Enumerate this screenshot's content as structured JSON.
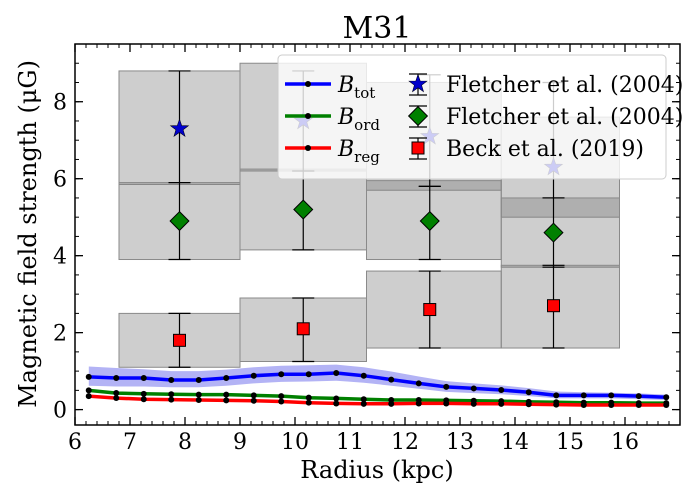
{
  "chart_data": {
    "type": "line",
    "title": "M31",
    "xlabel": "Radius (kpc)",
    "ylabel": "Magnetic field strength (μG)",
    "xlim": [
      6,
      17.0
    ],
    "ylim": [
      -0.4,
      9.5
    ],
    "xticks": [
      6,
      7,
      8,
      9,
      10,
      11,
      12,
      13,
      14,
      15,
      16
    ],
    "yticks": [
      0,
      2,
      4,
      6,
      8
    ],
    "grid": false,
    "legend_position": "top-right",
    "series": [
      {
        "name": "B_tot",
        "label_main": "B",
        "label_sub": "tot",
        "color": "#0000ff",
        "band_color": "#b3b3f5",
        "x": [
          6.25,
          6.75,
          7.25,
          7.75,
          8.25,
          8.75,
          9.25,
          9.75,
          10.25,
          10.75,
          11.25,
          11.75,
          12.25,
          12.75,
          13.25,
          13.75,
          14.25,
          14.75,
          15.25,
          15.75,
          16.25,
          16.75
        ],
        "y": [
          0.85,
          0.82,
          0.82,
          0.77,
          0.77,
          0.82,
          0.88,
          0.92,
          0.92,
          0.95,
          0.88,
          0.78,
          0.68,
          0.59,
          0.55,
          0.51,
          0.45,
          0.37,
          0.37,
          0.37,
          0.35,
          0.32
        ],
        "band_upper": [
          1.12,
          1.08,
          1.05,
          1.0,
          1.0,
          1.04,
          1.1,
          1.14,
          1.15,
          1.17,
          1.1,
          0.99,
          0.86,
          0.74,
          0.68,
          0.63,
          0.56,
          0.47,
          0.45,
          0.44,
          0.42,
          0.39
        ],
        "band_lower": [
          0.62,
          0.6,
          0.6,
          0.58,
          0.58,
          0.62,
          0.68,
          0.72,
          0.73,
          0.75,
          0.7,
          0.62,
          0.54,
          0.46,
          0.43,
          0.4,
          0.35,
          0.29,
          0.29,
          0.29,
          0.27,
          0.25
        ]
      },
      {
        "name": "B_ord",
        "label_main": "B",
        "label_sub": "ord",
        "color": "#008000",
        "x": [
          6.25,
          6.75,
          7.25,
          7.75,
          8.25,
          8.75,
          9.25,
          9.75,
          10.25,
          10.75,
          11.25,
          11.75,
          12.25,
          12.75,
          13.25,
          13.75,
          14.25,
          14.75,
          15.25,
          15.75,
          16.25,
          16.75
        ],
        "y": [
          0.5,
          0.43,
          0.41,
          0.4,
          0.39,
          0.39,
          0.37,
          0.35,
          0.31,
          0.29,
          0.27,
          0.25,
          0.25,
          0.24,
          0.23,
          0.22,
          0.2,
          0.19,
          0.18,
          0.18,
          0.17,
          0.17
        ]
      },
      {
        "name": "B_reg",
        "label_main": "B",
        "label_sub": "reg",
        "color": "#ff0000",
        "x": [
          6.25,
          6.75,
          7.25,
          7.75,
          8.25,
          8.75,
          9.25,
          9.75,
          10.25,
          10.75,
          11.25,
          11.75,
          12.25,
          12.75,
          13.25,
          13.75,
          14.25,
          14.75,
          15.25,
          15.75,
          16.25,
          16.75
        ],
        "y": [
          0.35,
          0.3,
          0.27,
          0.26,
          0.25,
          0.24,
          0.23,
          0.21,
          0.18,
          0.16,
          0.15,
          0.15,
          0.16,
          0.16,
          0.15,
          0.15,
          0.14,
          0.13,
          0.12,
          0.12,
          0.12,
          0.12
        ]
      }
    ],
    "points": [
      {
        "name": "Fletcher et al. (2004)",
        "marker": "star",
        "color": "#0000cc",
        "x": [
          7.9,
          10.15,
          12.45,
          14.7
        ],
        "y": [
          7.3,
          7.5,
          7.1,
          6.3
        ],
        "yerr_upper": [
          8.8,
          8.8,
          8.7,
          8.5
        ],
        "yerr_lower": [
          5.9,
          6.2,
          5.8,
          5.5
        ],
        "box_x": [
          [
            6.8,
            9.0
          ],
          [
            9.0,
            11.3
          ],
          [
            11.3,
            13.75
          ],
          [
            13.75,
            15.9
          ]
        ],
        "box_y": [
          [
            5.85,
            8.8
          ],
          [
            6.2,
            9.0
          ],
          [
            5.7,
            8.5
          ],
          [
            5.0,
            7.6
          ]
        ]
      },
      {
        "name": "Fletcher et al. (2004)",
        "marker": "diamond",
        "color": "#008000",
        "x": [
          7.9,
          10.15,
          12.45,
          14.7
        ],
        "y": [
          4.9,
          5.2,
          4.9,
          4.6
        ],
        "yerr_upper": [
          5.9,
          6.2,
          5.8,
          5.5
        ],
        "yerr_lower": [
          3.9,
          4.15,
          3.9,
          3.7
        ],
        "box_x": [
          [
            6.8,
            9.0
          ],
          [
            9.0,
            11.3
          ],
          [
            11.3,
            13.75
          ],
          [
            13.75,
            15.9
          ]
        ],
        "box_y": [
          [
            3.9,
            5.9
          ],
          [
            4.15,
            6.25
          ],
          [
            3.9,
            5.95
          ],
          [
            3.7,
            5.5
          ]
        ]
      },
      {
        "name": "Beck et al. (2019)",
        "marker": "square",
        "color": "#ff0000",
        "x": [
          7.9,
          10.15,
          12.45,
          14.7
        ],
        "y": [
          1.8,
          2.1,
          2.6,
          2.7
        ],
        "yerr_upper": [
          2.5,
          2.9,
          3.6,
          3.75
        ],
        "yerr_lower": [
          1.1,
          1.25,
          1.6,
          1.6
        ],
        "box_x": [
          [
            6.8,
            9.0
          ],
          [
            9.0,
            11.3
          ],
          [
            11.3,
            13.75
          ],
          [
            13.75,
            15.9
          ]
        ],
        "box_y": [
          [
            1.1,
            2.5
          ],
          [
            1.25,
            2.9
          ],
          [
            1.6,
            3.6
          ],
          [
            1.6,
            3.75
          ]
        ]
      }
    ]
  }
}
